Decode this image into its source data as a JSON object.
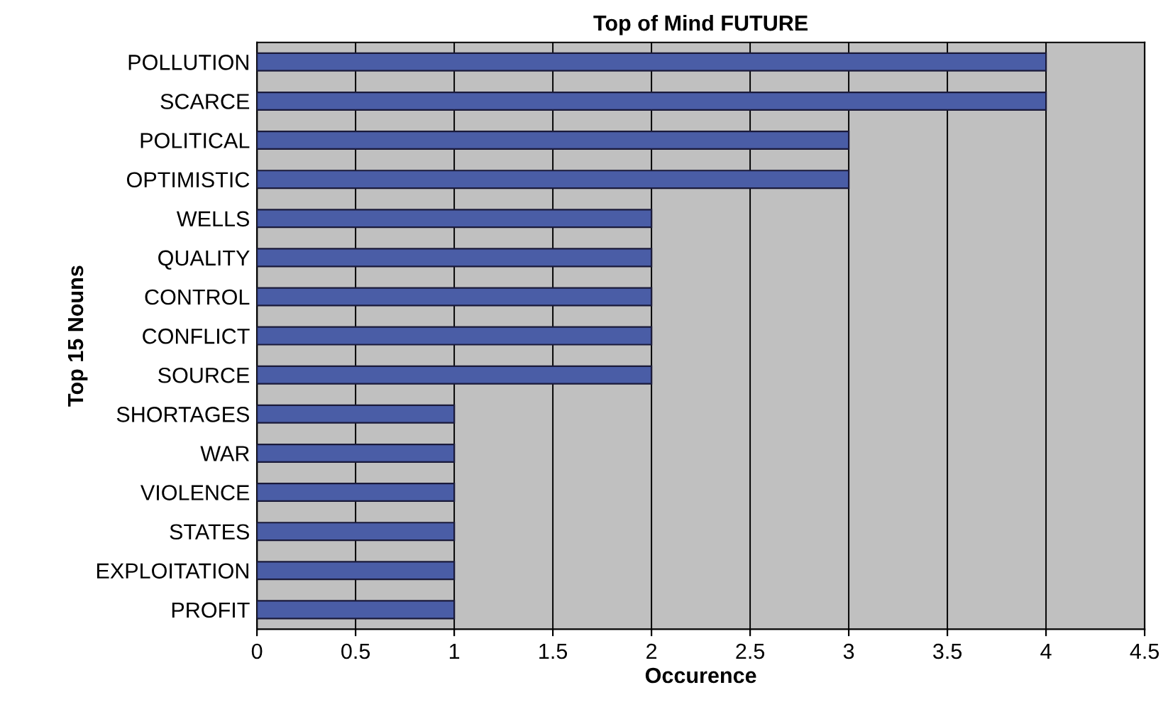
{
  "chart_data": {
    "type": "bar",
    "orientation": "horizontal",
    "title": "Top of Mind FUTURE",
    "xlabel": "Occurence",
    "ylabel": "Top 15 Nouns",
    "categories": [
      "POLLUTION",
      "SCARCE",
      "POLITICAL",
      "OPTIMISTIC",
      "WELLS",
      "QUALITY",
      "CONTROL",
      "CONFLICT",
      "SOURCE",
      "SHORTAGES",
      "WAR",
      "VIOLENCE",
      "STATES",
      "EXPLOITATION",
      "PROFIT"
    ],
    "values": [
      4,
      4,
      3,
      3,
      2,
      2,
      2,
      2,
      2,
      1,
      1,
      1,
      1,
      1,
      1
    ],
    "color": "#4a5da6",
    "xlim": [
      0,
      4.5
    ],
    "xticks": [
      0,
      0.5,
      1,
      1.5,
      2,
      2.5,
      3,
      3.5,
      4,
      4.5
    ],
    "grid": "x"
  }
}
